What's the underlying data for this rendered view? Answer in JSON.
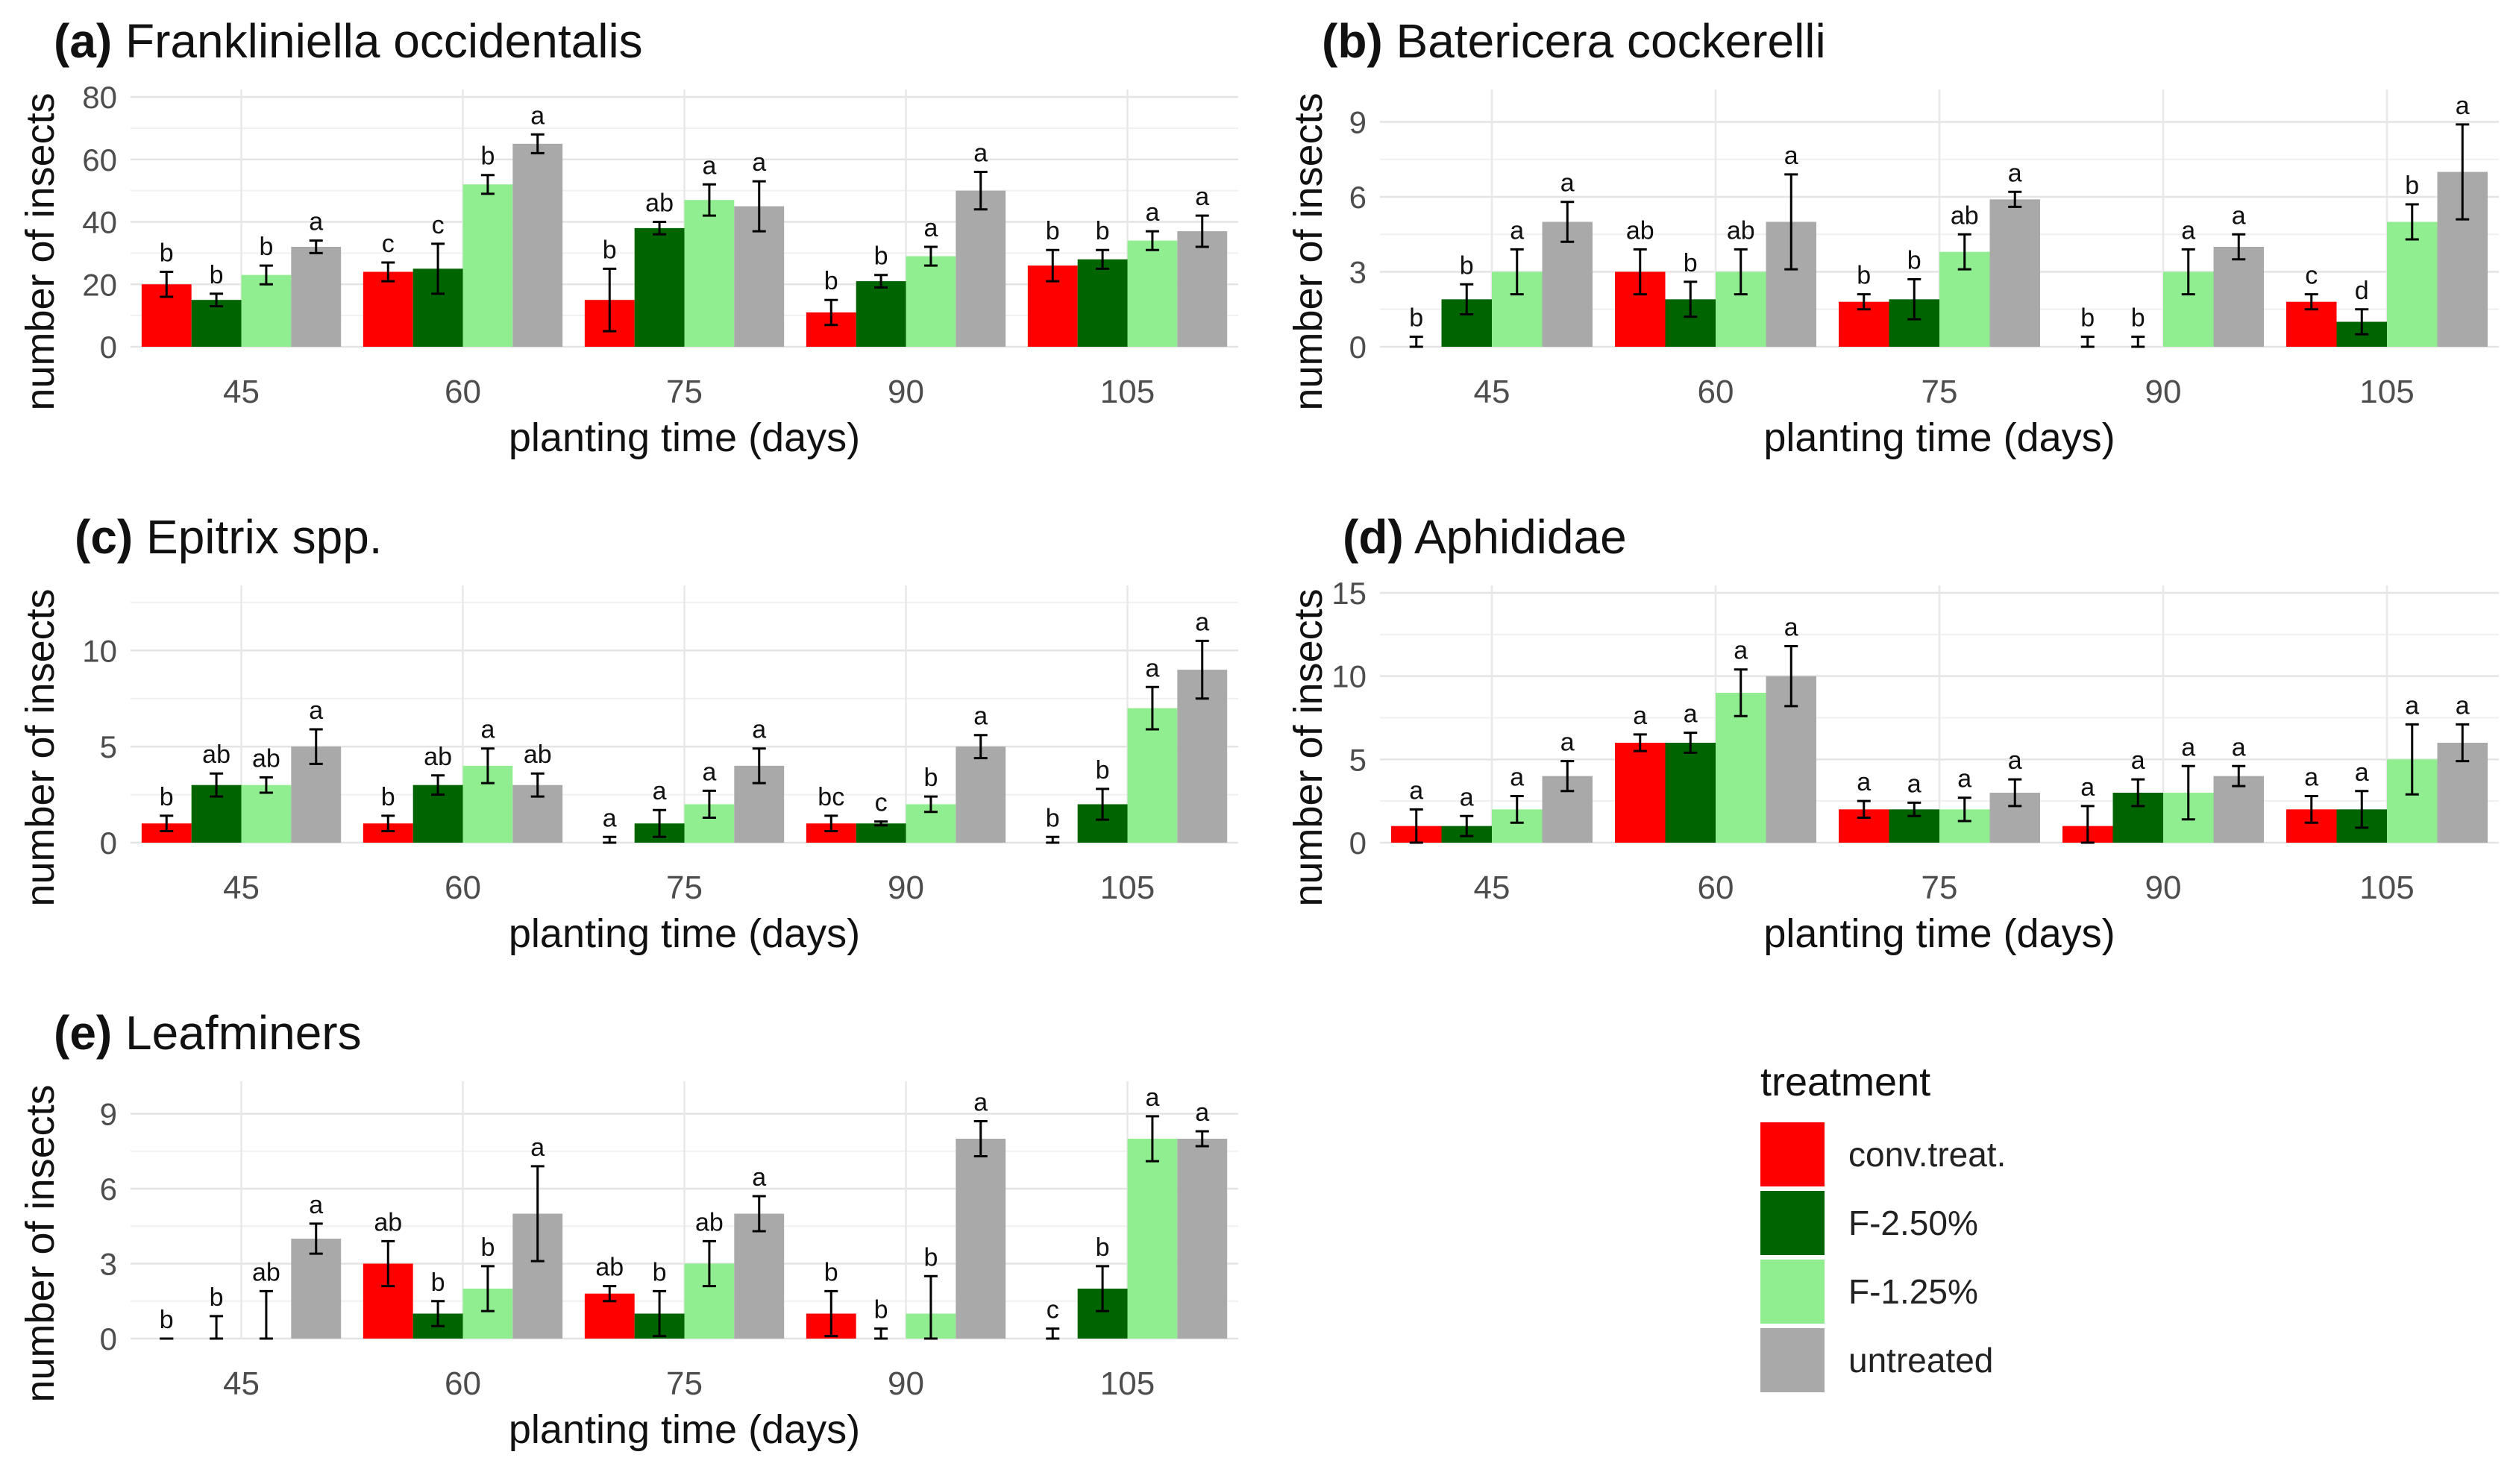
{
  "treatments": [
    {
      "name": "conv.treat.",
      "color": "#ff0000"
    },
    {
      "name": "F-2.50%",
      "color": "#006400"
    },
    {
      "name": "F-1.25%",
      "color": "#90ee90"
    },
    {
      "name": "untreated",
      "color": "#a9a9a9"
    }
  ],
  "legend_title": "treatment",
  "chart_data": [
    {
      "type": "bar",
      "letter": "(a)",
      "title": "Frankliniella occidentalis",
      "xlabel": "planting time (days)",
      "ylabel": "number of insects",
      "categories": [
        "45",
        "60",
        "75",
        "90",
        "105"
      ],
      "ylim": [
        0,
        80
      ],
      "yticks": [
        0,
        20,
        40,
        60,
        80
      ],
      "series": [
        {
          "name": "conv.treat.",
          "values": [
            20,
            24,
            15,
            11,
            26
          ],
          "errors": [
            4,
            3,
            10,
            4,
            5
          ],
          "letters": [
            "b",
            "c",
            "b",
            "b",
            "b"
          ]
        },
        {
          "name": "F-2.50%",
          "values": [
            15,
            25,
            38,
            21,
            28
          ],
          "errors": [
            2,
            8,
            2,
            2,
            3
          ],
          "letters": [
            "b",
            "c",
            "ab",
            "b",
            "b"
          ]
        },
        {
          "name": "F-1.25%",
          "values": [
            23,
            52,
            47,
            29,
            34
          ],
          "errors": [
            3,
            3,
            5,
            3,
            3
          ],
          "letters": [
            "b",
            "b",
            "a",
            "a",
            "a"
          ]
        },
        {
          "name": "untreated",
          "values": [
            32,
            65,
            45,
            50,
            37
          ],
          "errors": [
            2,
            3,
            8,
            6,
            5
          ],
          "letters": [
            "a",
            "a",
            "a",
            "a",
            "a"
          ]
        }
      ]
    },
    {
      "type": "bar",
      "letter": "(b)",
      "title": "Batericera cockerelli",
      "xlabel": "planting time (days)",
      "ylabel": "number of insects",
      "categories": [
        "45",
        "60",
        "75",
        "90",
        "105"
      ],
      "ylim": [
        0,
        10
      ],
      "yticks": [
        0,
        3,
        6,
        9
      ],
      "series": [
        {
          "name": "conv.treat.",
          "values": [
            0,
            3,
            1.8,
            0,
            1.8
          ],
          "errors": [
            0.4,
            0.9,
            0.3,
            0.4,
            0.3
          ],
          "letters": [
            "b",
            "ab",
            "b",
            "b",
            "c"
          ]
        },
        {
          "name": "F-2.50%",
          "values": [
            1.9,
            1.9,
            1.9,
            0,
            1
          ],
          "errors": [
            0.6,
            0.7,
            0.8,
            0.4,
            0.5
          ],
          "letters": [
            "b",
            "b",
            "b",
            "b",
            "d"
          ]
        },
        {
          "name": "F-1.25%",
          "values": [
            3,
            3,
            3.8,
            3,
            5
          ],
          "errors": [
            0.9,
            0.9,
            0.7,
            0.9,
            0.7
          ],
          "letters": [
            "a",
            "ab",
            "ab",
            "a",
            "b"
          ]
        },
        {
          "name": "untreated",
          "values": [
            5,
            5,
            5.9,
            4,
            7
          ],
          "errors": [
            0.8,
            1.9,
            0.3,
            0.5,
            1.9
          ],
          "letters": [
            "a",
            "a",
            "a",
            "a",
            "a"
          ]
        }
      ]
    },
    {
      "type": "bar",
      "letter": "(c)",
      "title": "Epitrix spp.",
      "xlabel": "planting time (days)",
      "ylabel": "number of insects",
      "categories": [
        "45",
        "60",
        "75",
        "90",
        "105"
      ],
      "ylim": [
        0,
        13
      ],
      "yticks": [
        0,
        5,
        10
      ],
      "series": [
        {
          "name": "conv.treat.",
          "values": [
            1,
            1,
            0,
            1,
            0
          ],
          "errors": [
            0.4,
            0.4,
            0.3,
            0.4,
            0.3
          ],
          "letters": [
            "b",
            "b",
            "a",
            "bc",
            "b"
          ]
        },
        {
          "name": "F-2.50%",
          "values": [
            3,
            3,
            1,
            1,
            2
          ],
          "errors": [
            0.6,
            0.5,
            0.7,
            0.1,
            0.8
          ],
          "letters": [
            "ab",
            "ab",
            "a",
            "c",
            "b"
          ]
        },
        {
          "name": "F-1.25%",
          "values": [
            3,
            4,
            2,
            2,
            7
          ],
          "errors": [
            0.4,
            0.9,
            0.7,
            0.4,
            1.1
          ],
          "letters": [
            "ab",
            "a",
            "a",
            "b",
            "a"
          ]
        },
        {
          "name": "untreated",
          "values": [
            5,
            3,
            4,
            5,
            9
          ],
          "errors": [
            0.9,
            0.6,
            0.9,
            0.6,
            1.5
          ],
          "letters": [
            "a",
            "ab",
            "a",
            "a",
            "a"
          ]
        }
      ]
    },
    {
      "type": "bar",
      "letter": "(d)",
      "title": "Aphididae",
      "xlabel": "planting time (days)",
      "ylabel": "number of insects",
      "categories": [
        "45",
        "60",
        "75",
        "90",
        "105"
      ],
      "ylim": [
        0,
        15
      ],
      "yticks": [
        0,
        5,
        10,
        15
      ],
      "series": [
        {
          "name": "conv.treat.",
          "values": [
            1,
            6,
            2,
            1,
            2
          ],
          "errors": [
            1,
            0.5,
            0.5,
            1.2,
            0.8
          ],
          "letters": [
            "a",
            "a",
            "a",
            "a",
            "a"
          ]
        },
        {
          "name": "F-2.50%",
          "values": [
            1,
            6,
            2,
            3,
            2
          ],
          "errors": [
            0.6,
            0.6,
            0.4,
            0.8,
            1.1
          ],
          "letters": [
            "a",
            "a",
            "a",
            "a",
            "a"
          ]
        },
        {
          "name": "F-1.25%",
          "values": [
            2,
            9,
            2,
            3,
            5
          ],
          "errors": [
            0.8,
            1.4,
            0.7,
            1.6,
            2.1
          ],
          "letters": [
            "a",
            "a",
            "a",
            "a",
            "a"
          ]
        },
        {
          "name": "untreated",
          "values": [
            4,
            10,
            3,
            4,
            6
          ],
          "errors": [
            0.9,
            1.8,
            0.8,
            0.6,
            1.1
          ],
          "letters": [
            "a",
            "a",
            "a",
            "a",
            "a"
          ]
        }
      ]
    },
    {
      "type": "bar",
      "letter": "(e)",
      "title": "Leafminers",
      "xlabel": "planting time (days)",
      "ylabel": "number of insects",
      "categories": [
        "45",
        "60",
        "75",
        "90",
        "105"
      ],
      "ylim": [
        0,
        10
      ],
      "yticks": [
        0,
        3,
        6,
        9
      ],
      "series": [
        {
          "name": "conv.treat.",
          "values": [
            0,
            3,
            1.8,
            1,
            0
          ],
          "errors": [
            0,
            0.9,
            0.3,
            0.9,
            0.4
          ],
          "letters": [
            "b",
            "ab",
            "ab",
            "b",
            "c"
          ]
        },
        {
          "name": "F-2.50%",
          "values": [
            0,
            1,
            1,
            0,
            2
          ],
          "errors": [
            0.9,
            0.5,
            0.9,
            0.4,
            0.9
          ],
          "letters": [
            "b",
            "b",
            "b",
            "b",
            "b"
          ]
        },
        {
          "name": "F-1.25%",
          "values": [
            0,
            2,
            3,
            1,
            8
          ],
          "errors": [
            1.9,
            0.9,
            0.9,
            1.5,
            0.9
          ],
          "letters": [
            "ab",
            "b",
            "ab",
            "b",
            "a"
          ]
        },
        {
          "name": "untreated",
          "values": [
            4,
            5,
            5,
            8,
            8
          ],
          "errors": [
            0.6,
            1.9,
            0.7,
            0.7,
            0.3
          ],
          "letters": [
            "a",
            "a",
            "a",
            "a",
            "a"
          ]
        }
      ]
    }
  ]
}
